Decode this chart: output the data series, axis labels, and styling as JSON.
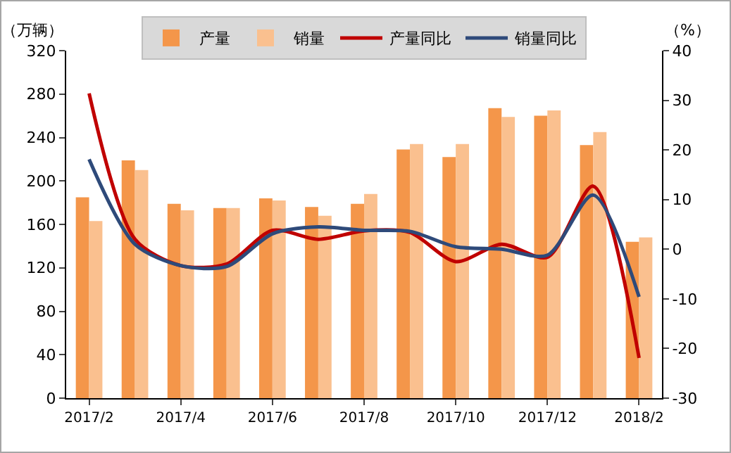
{
  "chart_data": {
    "type": "bar",
    "categories": [
      "2017/2",
      null,
      "2017/4",
      null,
      "2017/6",
      null,
      "2017/8",
      null,
      "2017/10",
      null,
      "2017/12",
      null,
      "2018/2"
    ],
    "ylabel": "（万辆）",
    "y2label": "（%）",
    "ylim": [
      0,
      320
    ],
    "yticks": [
      0,
      40,
      80,
      120,
      160,
      200,
      240,
      280,
      320
    ],
    "y2lim": [
      -30,
      40
    ],
    "y2ticks": [
      -30,
      -20,
      -10,
      0,
      10,
      20,
      30,
      40
    ],
    "grid": false,
    "legend": "top",
    "series": [
      {
        "name": "产量",
        "color": "#f4964a",
        "values": [
          185,
          219,
          179,
          175,
          184,
          176,
          179,
          229,
          222,
          267,
          260,
          233,
          144
        ]
      },
      {
        "name": "销量",
        "color": "#fac08f",
        "values": [
          163,
          210,
          173,
          175,
          182,
          168,
          188,
          234,
          234,
          259,
          265,
          245,
          148
        ]
      },
      {
        "name": "产量同比",
        "type": "line",
        "axis": "y2",
        "color": "#c00000",
        "line_style": "solid",
        "marker": "none",
        "values": [
          31.4,
          2,
          -3.3,
          -3,
          3.8,
          2,
          3.7,
          3.4,
          -2.5,
          1,
          -1.6,
          12.7,
          -21.9
        ]
      },
      {
        "name": "销量同比",
        "type": "line",
        "axis": "y2",
        "color": "#2e4a7a",
        "line_style": "solid",
        "marker": "none",
        "values": [
          18.1,
          1,
          -3.3,
          -3.5,
          3.1,
          4.5,
          3.8,
          3.6,
          0.5,
          0,
          -1.2,
          10.9,
          -9.6
        ]
      }
    ]
  }
}
